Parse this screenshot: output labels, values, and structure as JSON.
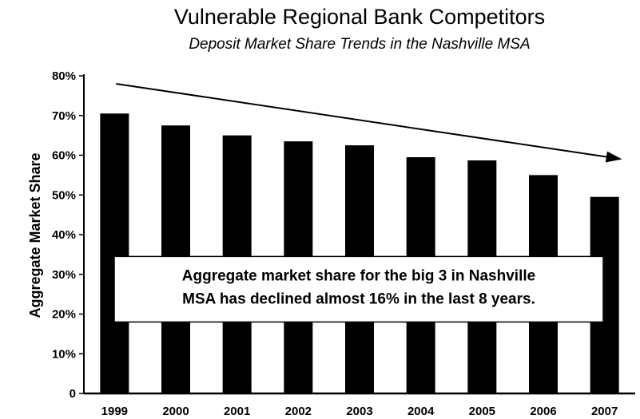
{
  "chart_data": {
    "type": "bar",
    "title": "Vulnerable Regional Bank Competitors",
    "subtitle": "Deposit Market Share Trends in the Nashville MSA",
    "ylabel": "Aggregate Market Share",
    "xlabel": "",
    "categories": [
      "1999",
      "2000",
      "2001",
      "2002",
      "2003",
      "2004",
      "2005",
      "2006",
      "2007"
    ],
    "values": [
      70.5,
      67.5,
      65,
      63.5,
      62.5,
      59.5,
      58.7,
      55,
      49.5
    ],
    "ylim": [
      0,
      80
    ],
    "yticks": [
      {
        "value": 0,
        "label": "0"
      },
      {
        "value": 10,
        "label": "10%"
      },
      {
        "value": 20,
        "label": "20%"
      },
      {
        "value": 30,
        "label": "30%"
      },
      {
        "value": 40,
        "label": "40%"
      },
      {
        "value": 50,
        "label": "50%"
      },
      {
        "value": 60,
        "label": "60%"
      },
      {
        "value": 70,
        "label": "70%"
      },
      {
        "value": 80,
        "label": "80%"
      }
    ],
    "grid": false,
    "legend": "none",
    "annotation": {
      "lines": [
        "Aggregate market share for the big 3 in Nashville",
        "MSA has declined almost 16% in the last 8 years."
      ]
    },
    "trend_arrow": {
      "start": {
        "x": "1999",
        "y": 78
      },
      "end": {
        "x": "2007",
        "y": 59
      }
    },
    "colors": {
      "bar": "#000000",
      "background": "#ffffff"
    }
  }
}
